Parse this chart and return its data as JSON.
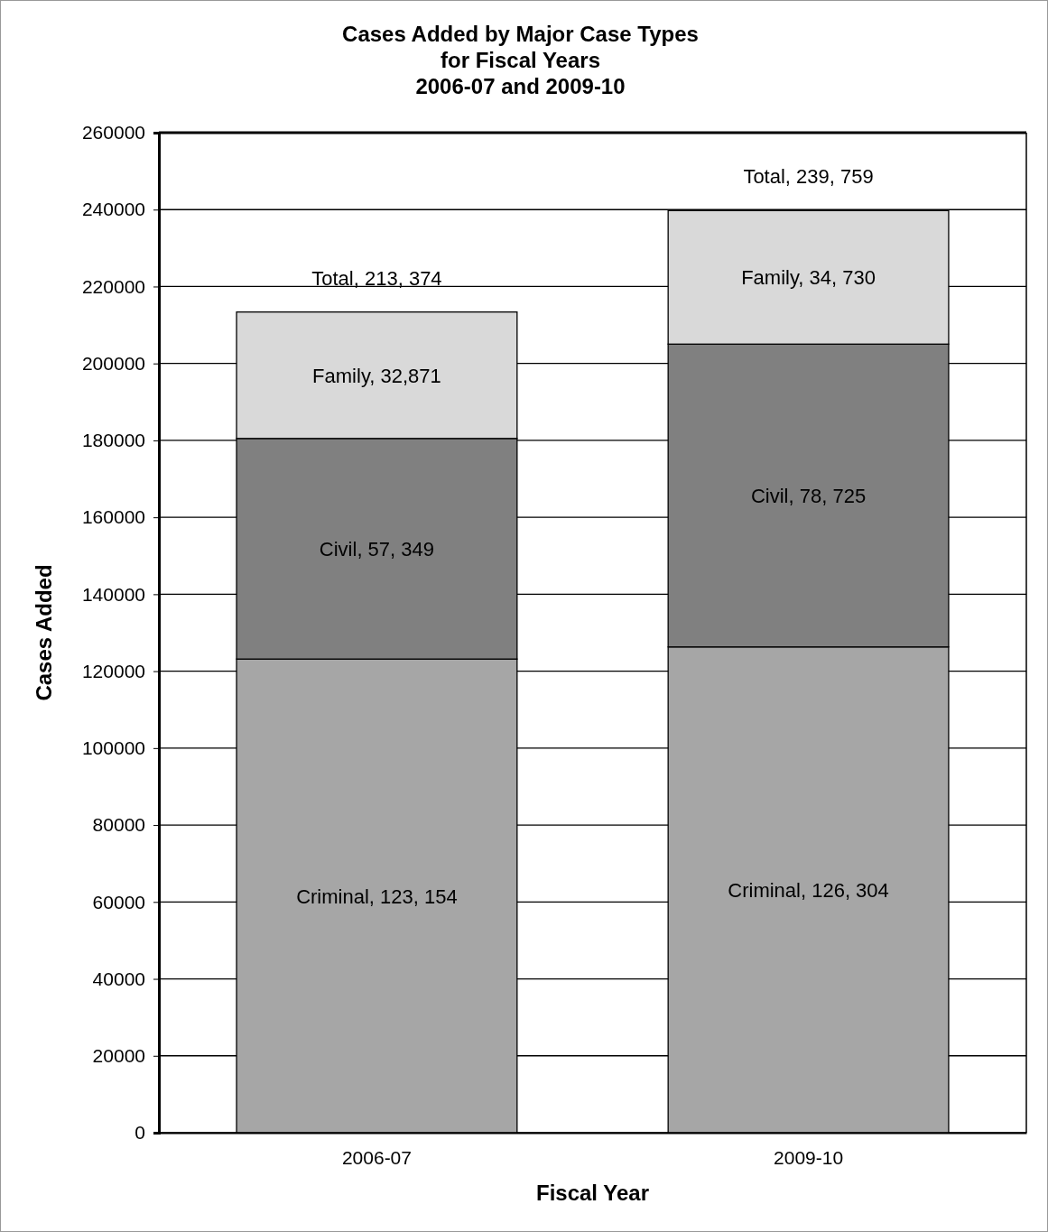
{
  "chart_data": {
    "type": "bar",
    "title": "Cases Added by Major Case Types\nfor Fiscal Years\n2006-07 and 2009-10",
    "xlabel": "Fiscal Year",
    "ylabel": "Cases Added",
    "categories": [
      "2006-07",
      "2009-10"
    ],
    "stacked": true,
    "series": [
      {
        "color": "#a6a6a6",
        "values": [
          123154,
          126304
        ],
        "value_labels": [
          "Criminal, 123, 154",
          "Criminal, 126, 304"
        ]
      },
      {
        "color": "#808080",
        "values": [
          57349,
          78725
        ],
        "value_labels": [
          "Civil, 57, 349",
          "Civil, 78, 725"
        ]
      },
      {
        "color": "#d9d9d9",
        "values": [
          32871,
          34730
        ],
        "value_labels": [
          "Family, 32,871",
          "Family, 34, 730"
        ]
      }
    ],
    "totals": [
      "Total, 213, 374",
      "Total, 239, 759"
    ],
    "ylim": [
      0,
      260000
    ],
    "yticks": [
      0,
      20000,
      40000,
      60000,
      80000,
      100000,
      120000,
      140000,
      160000,
      180000,
      200000,
      220000,
      240000,
      260000
    ],
    "grid": "y",
    "legend": false
  }
}
